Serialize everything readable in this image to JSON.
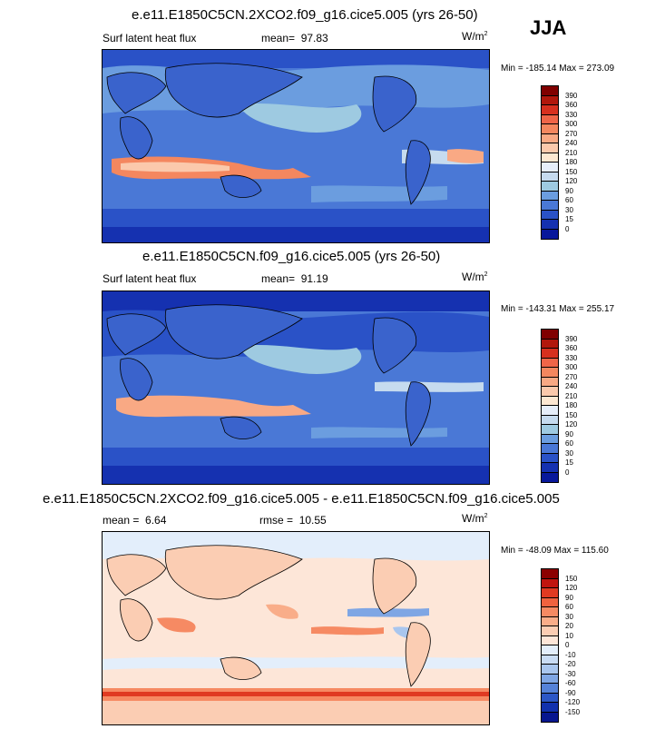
{
  "season": "JJA",
  "units_label": "W/m",
  "units_sup": "2",
  "panels": [
    {
      "title": "e.e11.E1850C5CN.2XCO2.f09_g16.cice5.005 (yrs 26-50)",
      "left_label": "Surf latent heat flux",
      "stat_label": "mean=",
      "stat_value": "97.83",
      "minmax": "Min = -185.14 Max = 273.09",
      "colorbar": {
        "levels": [
          "390",
          "360",
          "330",
          "300",
          "270",
          "240",
          "210",
          "180",
          "150",
          "120",
          "90",
          "60",
          "30",
          "15",
          "0"
        ],
        "colors": [
          "#800000",
          "#b1170c",
          "#d7301f",
          "#ef6548",
          "#f4875f",
          "#f9a984",
          "#fbc9ac",
          "#fde8d2",
          "#e6eefa",
          "#c6dbef",
          "#9ecae1",
          "#6b9ddf",
          "#4a78d6",
          "#2a52c7",
          "#1531b0",
          "#08189b"
        ]
      }
    },
    {
      "title": "e.e11.E1850C5CN.f09_g16.cice5.005 (yrs 26-50)",
      "left_label": "Surf latent heat flux",
      "stat_label": "mean=",
      "stat_value": "91.19",
      "minmax": "Min = -143.31 Max = 255.17",
      "colorbar": {
        "levels": [
          "390",
          "360",
          "330",
          "300",
          "270",
          "240",
          "210",
          "180",
          "150",
          "120",
          "90",
          "60",
          "30",
          "15",
          "0"
        ],
        "colors": [
          "#800000",
          "#b1170c",
          "#d7301f",
          "#ef6548",
          "#f4875f",
          "#f9a984",
          "#fbc9ac",
          "#fde8d2",
          "#e6eefa",
          "#c6dbef",
          "#9ecae1",
          "#6b9ddf",
          "#4a78d6",
          "#2a52c7",
          "#1531b0",
          "#08189b"
        ]
      }
    },
    {
      "title": "e.e11.E1850C5CN.2XCO2.f09_g16.cice5.005 - e.e11.E1850C5CN.f09_g16.cice5.005",
      "mean_label": "mean =",
      "mean_value": "6.64",
      "rmse_label": "rmse =",
      "rmse_value": "10.55",
      "minmax": "Min = -48.09 Max = 115.60",
      "colorbar": {
        "levels": [
          "150",
          "120",
          "90",
          "60",
          "30",
          "20",
          "10",
          "0",
          "-10",
          "-20",
          "-30",
          "-60",
          "-90",
          "-120",
          "-150"
        ],
        "colors": [
          "#8b0000",
          "#c0150f",
          "#e03a22",
          "#f0623f",
          "#f68a63",
          "#f9ad89",
          "#fbcdb3",
          "#fde6d8",
          "#e3eefb",
          "#c9dcf4",
          "#a9c6ee",
          "#7fa6e4",
          "#5582d8",
          "#2c57c6",
          "#1131ad",
          "#07168f"
        ]
      }
    }
  ]
}
